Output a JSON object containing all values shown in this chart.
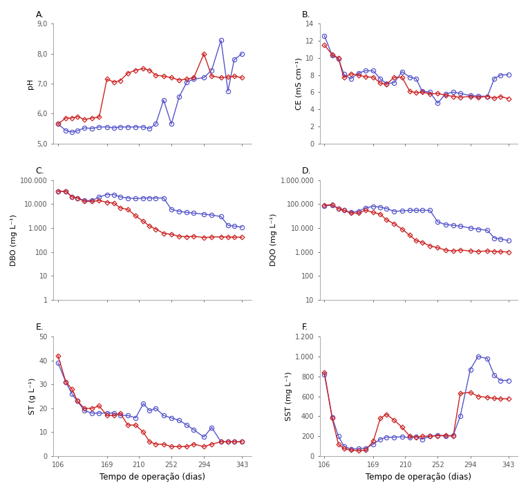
{
  "x_ticks": [
    106,
    169,
    210,
    252,
    294,
    343
  ],
  "panel_A": {
    "label": "A.",
    "ylabel": "pH",
    "ylim": [
      5.0,
      9.0
    ],
    "yticks": [
      5.0,
      6.0,
      7.0,
      8.0,
      9.0
    ],
    "yticklabels": [
      "5,0",
      "6,0",
      "7,0",
      "8,0",
      "9,0"
    ],
    "blue_x": [
      106,
      116,
      124,
      131,
      140,
      150,
      159,
      169,
      178,
      186,
      196,
      206,
      216,
      224,
      232,
      242,
      252,
      262,
      272,
      281,
      294,
      304,
      316,
      325,
      333,
      343
    ],
    "blue_y": [
      5.65,
      5.43,
      5.38,
      5.42,
      5.52,
      5.5,
      5.55,
      5.55,
      5.52,
      5.55,
      5.55,
      5.55,
      5.55,
      5.5,
      5.65,
      6.45,
      5.65,
      6.55,
      7.05,
      7.15,
      7.2,
      7.45,
      8.45,
      6.75,
      7.8,
      8.0
    ],
    "red_x": [
      106,
      116,
      124,
      131,
      140,
      150,
      159,
      169,
      178,
      186,
      196,
      206,
      216,
      224,
      232,
      242,
      252,
      262,
      272,
      281,
      294,
      304,
      316,
      325,
      333,
      343
    ],
    "red_y": [
      5.65,
      5.85,
      5.85,
      5.9,
      5.8,
      5.85,
      5.88,
      7.15,
      7.05,
      7.1,
      7.35,
      7.45,
      7.5,
      7.45,
      7.28,
      7.25,
      7.2,
      7.12,
      7.15,
      7.2,
      8.0,
      7.25,
      7.2,
      7.22,
      7.25,
      7.2
    ]
  },
  "panel_B": {
    "label": "B.",
    "ylabel": "CE (mS cm⁻¹)",
    "ylim": [
      0,
      14
    ],
    "yticks": [
      0,
      2,
      4,
      6,
      8,
      10,
      12,
      14
    ],
    "yticklabels": [
      "0",
      "2",
      "4",
      "6",
      "8",
      "10",
      "12",
      "14"
    ],
    "blue_x": [
      106,
      116,
      124,
      131,
      140,
      150,
      159,
      169,
      178,
      186,
      196,
      206,
      216,
      224,
      232,
      242,
      252,
      262,
      272,
      281,
      294,
      304,
      316,
      325,
      333,
      343
    ],
    "blue_y": [
      12.6,
      10.3,
      9.95,
      8.1,
      7.55,
      8.25,
      8.5,
      8.5,
      7.55,
      7.0,
      7.1,
      8.4,
      7.75,
      7.6,
      6.1,
      6.0,
      4.7,
      5.8,
      6.0,
      5.85,
      5.6,
      5.55,
      5.5,
      7.6,
      8.0,
      8.05
    ],
    "red_x": [
      106,
      116,
      124,
      131,
      140,
      150,
      159,
      169,
      178,
      186,
      196,
      206,
      216,
      224,
      232,
      242,
      252,
      262,
      272,
      281,
      294,
      304,
      316,
      325,
      333,
      343
    ],
    "red_y": [
      11.5,
      10.4,
      10.0,
      7.7,
      8.15,
      8.0,
      7.8,
      7.75,
      7.05,
      6.9,
      7.75,
      7.75,
      6.1,
      5.95,
      6.0,
      5.8,
      5.85,
      5.65,
      5.5,
      5.4,
      5.5,
      5.4,
      5.5,
      5.3,
      5.5,
      5.25
    ]
  },
  "panel_C": {
    "label": "C.",
    "ylabel": "DBO (mg L⁻¹)",
    "log": true,
    "ylim": [
      1,
      100000
    ],
    "yticks": [
      1,
      10,
      100,
      1000,
      10000,
      100000
    ],
    "yticklabels": [
      "1",
      "10",
      "100",
      "1.000",
      "10.000",
      "100.000"
    ],
    "blue_x": [
      106,
      116,
      124,
      131,
      140,
      150,
      159,
      169,
      178,
      186,
      196,
      206,
      216,
      224,
      232,
      242,
      252,
      262,
      272,
      281,
      294,
      304,
      316,
      325,
      333,
      343
    ],
    "blue_y": [
      34000,
      34000,
      20000,
      18000,
      14000,
      14000,
      20000,
      25000,
      25000,
      20000,
      18000,
      17000,
      18000,
      18000,
      18000,
      18000,
      6000,
      5000,
      4500,
      4200,
      3800,
      3500,
      3000,
      1300,
      1200,
      1100
    ],
    "red_x": [
      106,
      116,
      124,
      131,
      140,
      150,
      159,
      169,
      178,
      186,
      196,
      206,
      216,
      224,
      232,
      242,
      252,
      262,
      272,
      281,
      294,
      304,
      316,
      325,
      333,
      343
    ],
    "red_y": [
      34000,
      35000,
      20000,
      18000,
      13000,
      13000,
      14000,
      12000,
      11000,
      7000,
      6000,
      3200,
      1900,
      1200,
      900,
      600,
      550,
      450,
      430,
      450,
      400,
      420,
      430,
      420,
      415,
      410
    ]
  },
  "panel_D": {
    "label": "D.",
    "ylabel": "DQO (mg L⁻¹)",
    "log": true,
    "ylim": [
      10,
      1000000
    ],
    "yticks": [
      10,
      100,
      1000,
      10000,
      100000,
      1000000
    ],
    "yticklabels": [
      "10",
      "100",
      "1.000",
      "10.000",
      "100.000",
      "1.000.000"
    ],
    "blue_x": [
      106,
      116,
      124,
      131,
      140,
      150,
      159,
      169,
      178,
      186,
      196,
      206,
      216,
      224,
      232,
      242,
      252,
      262,
      272,
      281,
      294,
      304,
      316,
      325,
      333,
      343
    ],
    "blue_y": [
      85000,
      90000,
      65000,
      55000,
      45000,
      50000,
      70000,
      80000,
      75000,
      65000,
      50000,
      52000,
      55000,
      55000,
      55000,
      55000,
      18000,
      14000,
      13000,
      12000,
      10000,
      9000,
      8000,
      3800,
      3500,
      3000
    ],
    "red_x": [
      106,
      116,
      124,
      131,
      140,
      150,
      159,
      169,
      178,
      186,
      196,
      206,
      216,
      224,
      232,
      242,
      252,
      262,
      272,
      281,
      294,
      304,
      316,
      325,
      333,
      343
    ],
    "red_y": [
      90000,
      95000,
      65000,
      55000,
      42000,
      42000,
      55000,
      45000,
      38000,
      22000,
      15000,
      9000,
      5000,
      3000,
      2500,
      1800,
      1500,
      1200,
      1100,
      1200,
      1100,
      1050,
      1100,
      1050,
      1020,
      1000
    ]
  },
  "panel_E": {
    "label": "E.",
    "ylabel": "ST (g L⁻¹)",
    "ylim": [
      0,
      50
    ],
    "yticks": [
      0,
      10,
      20,
      30,
      40,
      50
    ],
    "yticklabels": [
      "0",
      "10",
      "20",
      "30",
      "40",
      "50"
    ],
    "blue_x": [
      106,
      116,
      124,
      131,
      140,
      150,
      159,
      169,
      178,
      186,
      196,
      206,
      216,
      224,
      232,
      242,
      252,
      262,
      272,
      281,
      294,
      304,
      316,
      325,
      333,
      343
    ],
    "blue_y": [
      39,
      31,
      26,
      23,
      19,
      18,
      18,
      18,
      18,
      17,
      17,
      16,
      22,
      19,
      20,
      17,
      16,
      15,
      13,
      11,
      8,
      12,
      6,
      6,
      6,
      6
    ],
    "red_x": [
      106,
      116,
      124,
      131,
      140,
      150,
      159,
      169,
      178,
      186,
      196,
      206,
      216,
      224,
      232,
      242,
      252,
      262,
      272,
      281,
      294,
      304,
      316,
      325,
      333,
      343
    ],
    "red_y": [
      42,
      31,
      28,
      23,
      20,
      20,
      21,
      17,
      17,
      18,
      13,
      13,
      10,
      6,
      5,
      5,
      4,
      4,
      4,
      5,
      4,
      5,
      6,
      6,
      6,
      6
    ]
  },
  "panel_F": {
    "label": "F.",
    "ylabel": "SST (mg L⁻¹)",
    "ylim": [
      0,
      1200
    ],
    "yticks": [
      0,
      200,
      400,
      600,
      800,
      1000,
      1200
    ],
    "yticklabels": [
      "0",
      "200",
      "400",
      "600",
      "800",
      "1.000",
      "1.200"
    ],
    "blue_x": [
      106,
      116,
      124,
      131,
      140,
      150,
      159,
      169,
      178,
      186,
      196,
      206,
      216,
      224,
      232,
      242,
      252,
      262,
      272,
      281,
      294,
      304,
      316,
      325,
      333,
      343
    ],
    "blue_y": [
      820,
      390,
      200,
      100,
      70,
      75,
      80,
      120,
      170,
      190,
      190,
      195,
      185,
      195,
      170,
      200,
      210,
      200,
      210,
      400,
      870,
      1000,
      980,
      810,
      760,
      760
    ],
    "red_x": [
      106,
      116,
      124,
      131,
      140,
      150,
      159,
      169,
      178,
      186,
      196,
      206,
      216,
      224,
      232,
      242,
      252,
      262,
      272,
      281,
      294,
      304,
      316,
      325,
      333,
      343
    ],
    "red_y": [
      840,
      380,
      120,
      75,
      60,
      55,
      60,
      150,
      380,
      420,
      360,
      290,
      200,
      190,
      200,
      200,
      205,
      210,
      200,
      630,
      640,
      600,
      590,
      580,
      575,
      575
    ]
  },
  "blue_color": "#5555cc",
  "red_color": "#cc2222",
  "line_width": 1.0,
  "marker_size_blue": 4.5,
  "marker_size_red": 3.5,
  "xlabel": "Tempo de operação (dias)",
  "background_color": "#ffffff",
  "fig_width": 7.64,
  "fig_height": 7.12
}
